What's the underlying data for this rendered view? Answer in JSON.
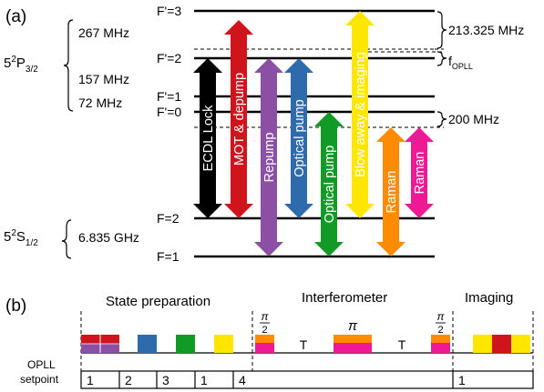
{
  "panel_a": {
    "label": "(a)",
    "states": {
      "p32": {
        "main": "5",
        "sup": "2",
        "letter": "P",
        "sub": "3/2"
      },
      "s12": {
        "main": "5",
        "sup": "2",
        "letter": "S",
        "sub": "1/2"
      }
    },
    "levels": [
      "F'=3",
      "F'=2",
      "F'=1",
      "F'=0",
      "F=2",
      "F=1"
    ],
    "splittings_left": [
      "267 MHz",
      "157 MHz",
      "72 MHz",
      "6.835 GHz"
    ],
    "splittings_right": {
      "upper": "213.325 MHz",
      "opll_main": "f",
      "opll_sub": "OPLL",
      "lower": "200 MHz"
    },
    "arrows": [
      {
        "label": "ECDL Lock",
        "color": "#000000"
      },
      {
        "label": "MOT & depump",
        "color": "#d0141c"
      },
      {
        "label": "Repump",
        "color": "#8b4fa3"
      },
      {
        "label": "Optical pump",
        "color": "#2e6bad"
      },
      {
        "label": "Optical pump",
        "color": "#119a26"
      },
      {
        "label": "Blow away & imaging",
        "color": "#ffe600"
      },
      {
        "label": "Raman",
        "color": "#ff8c00"
      },
      {
        "label": "Raman",
        "color": "#ee1a95"
      }
    ]
  },
  "panel_b": {
    "label": "(b)",
    "sections": [
      "State preparation",
      "Interferometer",
      "Imaging"
    ],
    "pulse_labels": {
      "half": "π/2",
      "half_num": "π",
      "half_den": "2",
      "full": "π",
      "wait": "T"
    },
    "opll_label_1": "OPLL",
    "opll_label_2": "setpoint",
    "setpoints": [
      "1",
      "2",
      "3",
      "1",
      "4",
      "1"
    ]
  },
  "colors": {
    "black": "#000000",
    "red": "#d0141c",
    "purple": "#8b4fa3",
    "blue": "#2e6bad",
    "green": "#119a26",
    "yellow": "#ffe600",
    "orange": "#ff8c00",
    "magenta": "#ee1a95"
  }
}
